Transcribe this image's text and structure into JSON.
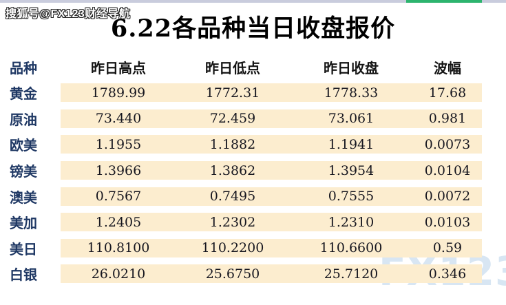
{
  "page": {
    "watermark_top": "搜狐号@FX123财经导航",
    "title": "6.22各品种当日收盘报价",
    "watermark_bottom": "FX123"
  },
  "colors": {
    "row_background": "#fcedcf",
    "label_text": "#1f3864",
    "value_text": "#16161f",
    "progress_green": "#2db46e",
    "progress_track": "#c9ccdd",
    "watermark_blue": "#d8e6f3"
  },
  "chart_data": {
    "type": "table",
    "title": "6.22各品种当日收盘报价",
    "columns": [
      "品种",
      "昨日高点",
      "昨日低点",
      "昨日收盘",
      "波幅"
    ],
    "rows": [
      [
        "黄金",
        "1789.99",
        "1772.31",
        "1778.33",
        "17.68"
      ],
      [
        "原油",
        "73.440",
        "72.459",
        "73.061",
        "0.981"
      ],
      [
        "欧美",
        "1.1955",
        "1.1882",
        "1.1941",
        "0.0073"
      ],
      [
        "镑美",
        "1.3966",
        "1.3862",
        "1.3954",
        "0.0104"
      ],
      [
        "澳美",
        "0.7567",
        "0.7495",
        "0.7555",
        "0.0072"
      ],
      [
        "美加",
        "1.2405",
        "1.2302",
        "1.2310",
        "0.0103"
      ],
      [
        "美日",
        "110.8100",
        "110.2200",
        "110.6600",
        "0.59"
      ],
      [
        "白银",
        "26.0210",
        "25.6750",
        "25.7120",
        "0.346"
      ]
    ]
  }
}
